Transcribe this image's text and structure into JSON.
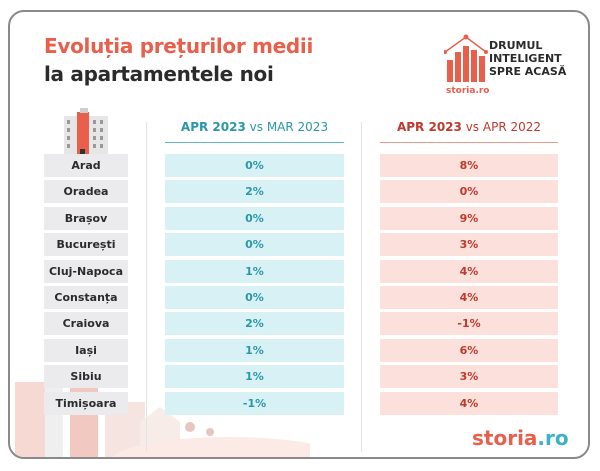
{
  "title_line1": "Evoluția prețurilor medii",
  "title_line2": "la apartamentele noi",
  "logo": {
    "slogan": [
      "DRUMUL",
      "INTELIGENT",
      "SPRE ACASĂ"
    ],
    "small_brand": "storia.ro"
  },
  "brand": {
    "name": "storia",
    "suffix": ".ro"
  },
  "colors": {
    "accent": "#e8604c",
    "teal": "#2a97a8",
    "red": "#c0392b",
    "teal_bg": "#d8f1f4",
    "pink_bg": "#fbe0db"
  },
  "chart_data": {
    "type": "table",
    "columns": [
      {
        "bold": "APR 2023",
        "rest": "vs MAR 2023"
      },
      {
        "bold": "APR 2023",
        "rest": "vs APR 2022"
      }
    ],
    "rows": [
      {
        "city": "Arad",
        "mom": "0%",
        "yoy": "8%"
      },
      {
        "city": "Oradea",
        "mom": "2%",
        "yoy": "0%"
      },
      {
        "city": "Brașov",
        "mom": "0%",
        "yoy": "9%"
      },
      {
        "city": "București",
        "mom": "0%",
        "yoy": "3%"
      },
      {
        "city": "Cluj-Napoca",
        "mom": "1%",
        "yoy": "4%"
      },
      {
        "city": "Constanța",
        "mom": "0%",
        "yoy": "4%"
      },
      {
        "city": "Craiova",
        "mom": "2%",
        "yoy": "-1%"
      },
      {
        "city": "Iași",
        "mom": "1%",
        "yoy": "6%"
      },
      {
        "city": "Sibiu",
        "mom": "1%",
        "yoy": "3%"
      },
      {
        "city": "Timișoara",
        "mom": "-1%",
        "yoy": "4%"
      }
    ]
  }
}
